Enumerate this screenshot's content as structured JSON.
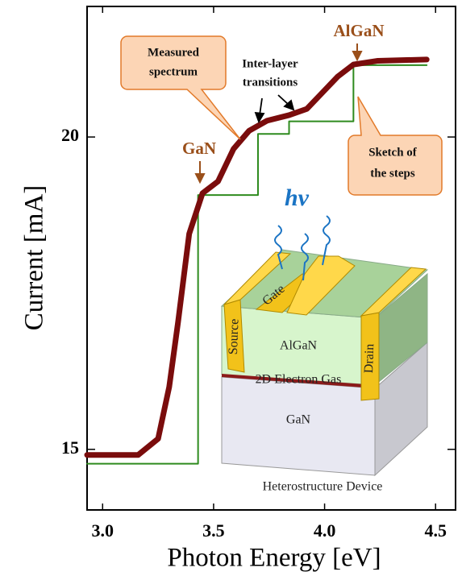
{
  "chart_data": {
    "type": "line",
    "xlabel": "Photon Energy [eV]",
    "ylabel": "Current [mA]",
    "xlim": [
      2.93,
      4.59
    ],
    "ylim": [
      14.03,
      22.09
    ],
    "xticks": [
      {
        "value": 3,
        "label": "3.0"
      },
      {
        "value": 3.5,
        "label": "3.5"
      },
      {
        "value": 4,
        "label": "4.0"
      },
      {
        "value": 4.5,
        "label": "4.5"
      }
    ],
    "yticks": [
      15,
      20
    ],
    "series": [
      {
        "name": "Measured spectrum",
        "color": "#7a0c0c",
        "x": [
          2.93,
          3.16,
          3.25,
          3.3,
          3.34,
          3.39,
          3.45,
          3.52,
          3.59,
          3.66,
          3.74,
          3.84,
          3.92,
          3.99,
          4.06,
          4.13,
          4.24,
          4.46
        ],
        "values": [
          14.91,
          14.91,
          15.17,
          16.0,
          17.04,
          18.45,
          19.1,
          19.29,
          19.81,
          20.1,
          20.26,
          20.35,
          20.45,
          20.71,
          20.97,
          21.16,
          21.22,
          21.24
        ]
      },
      {
        "name": "Sketch of the steps",
        "color": "#2e8b1e",
        "x": [
          2.93,
          3.43,
          3.43,
          3.7,
          3.7,
          3.84,
          3.84,
          4.13,
          4.13,
          4.46
        ],
        "values": [
          14.77,
          14.77,
          19.07,
          19.07,
          20.05,
          20.05,
          20.25,
          20.25,
          21.15,
          21.15
        ]
      }
    ],
    "annotations": {
      "measured": [
        "Measured",
        "spectrum"
      ],
      "inter": [
        "Inter-layer",
        "transitions"
      ],
      "sketch": [
        "Sketch of",
        "the steps"
      ],
      "gan": "GaN",
      "algan": "AlGaN"
    },
    "inset": {
      "hv": "hν",
      "gate": "Gate",
      "source": "Source",
      "algan": "AlGaN",
      "drain": "Drain",
      "gas": "2D Electron Gas",
      "gan": "GaN",
      "caption": "Heterostructure Device"
    }
  }
}
